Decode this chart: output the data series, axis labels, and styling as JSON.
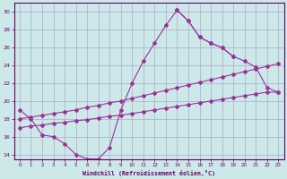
{
  "xlabel": "Windchill (Refroidissement éolien,°C)",
  "background_color": "#cde8e8",
  "grid_color": "#aaaacc",
  "line_color": "#993399",
  "hours": [
    0,
    1,
    2,
    3,
    4,
    5,
    6,
    7,
    8,
    9,
    10,
    11,
    12,
    13,
    14,
    15,
    16,
    17,
    18,
    19,
    20,
    21,
    22,
    23
  ],
  "curve1": [
    19.0,
    18.0,
    16.2,
    16.0,
    15.2,
    14.0,
    13.5,
    13.5,
    14.8,
    19.0,
    22.0,
    24.5,
    26.5,
    28.5,
    30.2,
    29.0,
    27.2,
    26.5,
    26.0,
    25.0,
    null,
    null,
    null,
    null
  ],
  "curve2_x": [
    14,
    15,
    16,
    17,
    18,
    19,
    20,
    21,
    22,
    23
  ],
  "curve2_y": [
    30.2,
    29.0,
    27.2,
    26.5,
    26.0,
    25.0,
    24.5,
    23.8,
    21.5,
    21.0
  ],
  "line_upper_x": [
    0,
    1,
    2,
    3,
    4,
    5,
    6,
    7,
    8,
    9,
    10,
    11,
    12,
    13,
    14,
    15,
    16,
    17,
    18,
    19,
    20,
    21,
    22,
    23
  ],
  "line_upper_y": [
    18.0,
    18.2,
    18.4,
    18.6,
    18.8,
    19.0,
    19.3,
    19.5,
    19.8,
    20.0,
    20.3,
    20.6,
    20.9,
    21.2,
    21.5,
    21.8,
    22.1,
    22.4,
    22.7,
    23.0,
    23.3,
    23.6,
    23.9,
    24.2
  ],
  "line_lower_x": [
    0,
    1,
    2,
    3,
    4,
    5,
    6,
    7,
    8,
    9,
    10,
    11,
    12,
    13,
    14,
    15,
    16,
    17,
    18,
    19,
    20,
    21,
    22,
    23
  ],
  "line_lower_y": [
    17.0,
    17.2,
    17.3,
    17.5,
    17.6,
    17.8,
    17.9,
    18.1,
    18.3,
    18.4,
    18.6,
    18.8,
    19.0,
    19.2,
    19.4,
    19.6,
    19.8,
    20.0,
    20.2,
    20.4,
    20.6,
    20.8,
    21.0,
    21.0
  ],
  "ylim": [
    13.5,
    31.0
  ],
  "yticks": [
    14,
    16,
    18,
    20,
    22,
    24,
    26,
    28,
    30
  ],
  "xlim": [
    -0.5,
    23.5
  ]
}
